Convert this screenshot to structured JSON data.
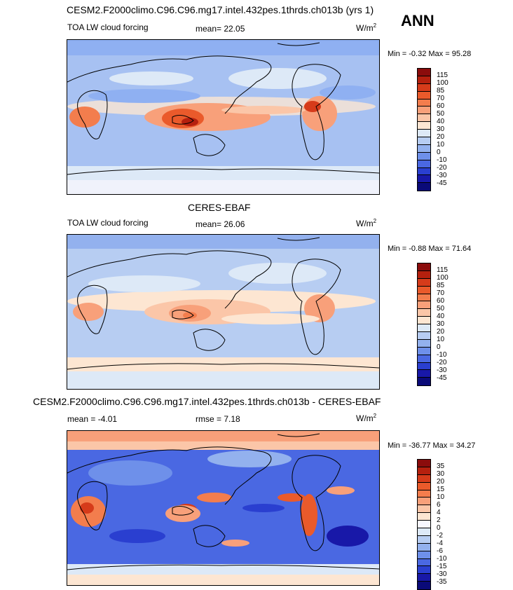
{
  "season": "ANN",
  "panels": [
    {
      "title": "CESM2.F2000climo.C96.C96.mg17.intel.432pes.1thrds.ch013b (yrs 1)",
      "left_label": "TOA LW cloud forcing",
      "stat_text": "mean=  22.05",
      "units": "W/m",
      "units_sup": "2",
      "minmax": "Min =  -0.32 Max =  95.28",
      "colorbar": {
        "labels": [
          "115",
          "100",
          "85",
          "70",
          "60",
          "50",
          "40",
          "30",
          "20",
          "10",
          "0",
          "-10",
          "-20",
          "-30",
          "-45"
        ],
        "colors": [
          "#8b0c0c",
          "#b5200e",
          "#d63b1a",
          "#ea5a2b",
          "#f37d4d",
          "#f8a07a",
          "#fbc6a8",
          "#fde6d2",
          "#dde9f7",
          "#b7cdf2",
          "#93b1ee",
          "#6e90ea",
          "#4a68e2",
          "#2a3fd0",
          "#1818a8",
          "#0a0a78"
        ]
      },
      "land_outlines_icon": "coastline-map"
    },
    {
      "title": "CERES-EBAF",
      "left_label": "TOA LW cloud forcing",
      "stat_text": "mean=  26.06",
      "units": "W/m",
      "units_sup": "2",
      "minmax": "Min =  -0.88 Max =  71.64",
      "colorbar": {
        "labels": [
          "115",
          "100",
          "85",
          "70",
          "60",
          "50",
          "40",
          "30",
          "20",
          "10",
          "0",
          "-10",
          "-20",
          "-30",
          "-45"
        ],
        "colors": [
          "#8b0c0c",
          "#b5200e",
          "#d63b1a",
          "#ea5a2b",
          "#f37d4d",
          "#f8a07a",
          "#fbc6a8",
          "#fde6d2",
          "#dde9f7",
          "#b7cdf2",
          "#93b1ee",
          "#6e90ea",
          "#4a68e2",
          "#2a3fd0",
          "#1818a8",
          "#0a0a78"
        ]
      },
      "land_outlines_icon": "coastline-map"
    },
    {
      "title": "CESM2.F2000climo.C96.C96.mg17.intel.432pes.1thrds.ch013b - CERES-EBAF",
      "left_label": "mean =  -4.01",
      "stat_text": "rmse =  7.18",
      "units": "W/m",
      "units_sup": "2",
      "minmax": "Min = -36.77 Max =  34.27",
      "colorbar": {
        "labels": [
          "35",
          "30",
          "20",
          "15",
          "10",
          "6",
          "4",
          "2",
          "0",
          "-2",
          "-4",
          "-6",
          "-10",
          "-15",
          "-30",
          "-35"
        ],
        "colors": [
          "#8b0c0c",
          "#b5200e",
          "#d63b1a",
          "#ea5a2b",
          "#f37d4d",
          "#f8a07a",
          "#fbc6a8",
          "#fde6d2",
          "#f7f7ff",
          "#dde9f7",
          "#b7cdf2",
          "#93b1ee",
          "#6e90ea",
          "#4a68e2",
          "#2a3fd0",
          "#1818a8",
          "#0a0a78"
        ]
      },
      "land_outlines_icon": "coastline-map"
    }
  ]
}
